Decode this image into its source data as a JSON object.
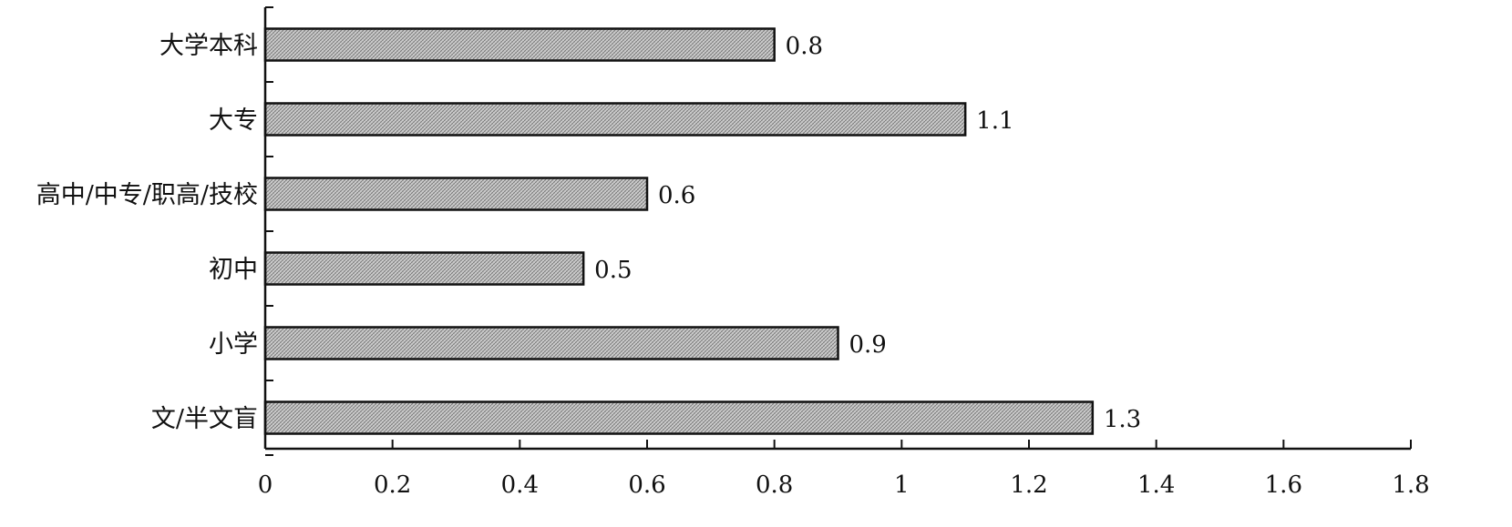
{
  "chart_data": {
    "type": "bar",
    "orientation": "horizontal",
    "title": "",
    "xlabel": "",
    "ylabel": "",
    "categories": [
      "大学本科",
      "大专",
      "高中/中专/职高/技校",
      "初中",
      "小学",
      "文/半文盲"
    ],
    "values": [
      0.8,
      1.1,
      0.6,
      0.5,
      0.9,
      1.3
    ],
    "data_labels": [
      "0.8",
      "1.1",
      "0.6",
      "0.5",
      "0.9",
      "1.3"
    ],
    "xlim": [
      0,
      1.8
    ],
    "xticks": [
      0,
      0.2,
      0.4,
      0.6,
      0.8,
      1,
      1.2,
      1.4,
      1.6,
      1.8
    ],
    "xtick_labels": [
      "0",
      "0.2",
      "0.4",
      "0.6",
      "0.8",
      "1",
      "1.2",
      "1.4",
      "1.6",
      "1.8"
    ],
    "grid": false,
    "legend": "none",
    "bar_pattern": "crosshatch",
    "bar_fill": "#cfcfcf",
    "bar_stroke": "#111111",
    "axis_color": "#111111"
  }
}
